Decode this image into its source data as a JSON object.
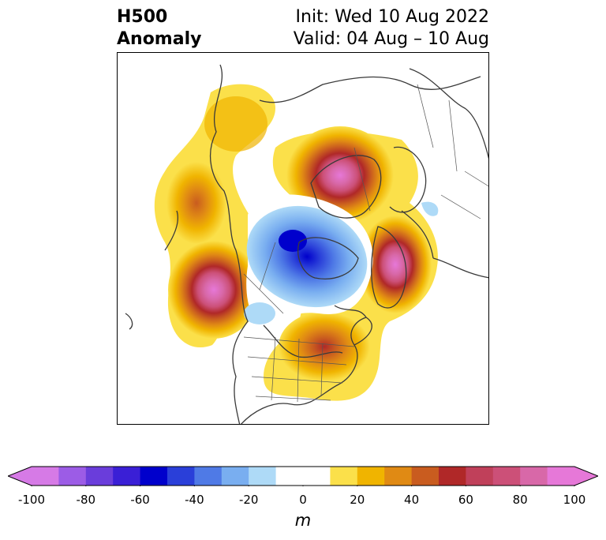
{
  "title": {
    "left_line1": "H500",
    "left_line2": "Anomaly",
    "right_line1": "Init: Wed 10 Aug 2022",
    "right_line2": "Valid: 04 Aug – 10 Aug"
  },
  "map": {
    "projection": "north-polar-stereographic",
    "region": "North America / Arctic",
    "coastline_color": "#3a3a3a",
    "anomaly_features": [
      {
        "name": "ridge-greenland-north",
        "kind": "positive",
        "peak_m": 100
      },
      {
        "name": "trough-canadian-arctic",
        "kind": "negative",
        "peak_m": -60
      },
      {
        "name": "ridge-scandinavia",
        "kind": "positive",
        "peak_m": 100
      },
      {
        "name": "ridge-pacific-northwest",
        "kind": "positive",
        "peak_m": 100
      },
      {
        "name": "ridge-alaska",
        "kind": "positive",
        "peak_m": 50
      },
      {
        "name": "ridge-northeast-us",
        "kind": "positive",
        "peak_m": 70
      },
      {
        "name": "ridge-southeast-us",
        "kind": "positive",
        "peak_m": 30
      },
      {
        "name": "ridge-siberia",
        "kind": "positive",
        "peak_m": 20
      }
    ]
  },
  "colorbar": {
    "unit": "m",
    "min": -100,
    "max": 100,
    "step": 10,
    "extend": "both",
    "ticks": [
      "-100",
      "-80",
      "-60",
      "-40",
      "-20",
      "0",
      "20",
      "40",
      "60",
      "80",
      "100"
    ],
    "colors": [
      "#d67ae6",
      "#9c5ce6",
      "#6a3ddb",
      "#3a1fd6",
      "#0000cc",
      "#2a3fd9",
      "#4f7ae6",
      "#79aef0",
      "#aedaf7",
      "#ffffff",
      "#ffffff",
      "#fbe04a",
      "#f0b400",
      "#e08a14",
      "#c95c1f",
      "#b02828",
      "#c0405a",
      "#cc5078",
      "#d868a8",
      "#e678d8"
    ],
    "under_color": "#d67ae6",
    "over_color": "#e678d8"
  }
}
